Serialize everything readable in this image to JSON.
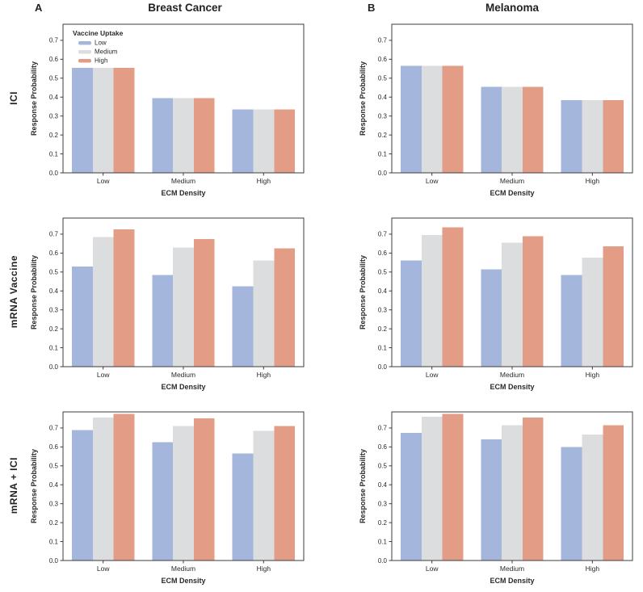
{
  "figure": {
    "panel_a": {
      "label": "A",
      "title": "Breast Cancer"
    },
    "panel_b": {
      "label": "B",
      "title": "Melanoma"
    },
    "row_labels": [
      "ICI",
      "mRNA Vaccine",
      "mRNA + ICI"
    ]
  },
  "legend": {
    "title": "Vaccine Uptake",
    "entries": [
      "Low",
      "Medium",
      "High"
    ]
  },
  "colors": {
    "uptake_low": "#a4b6db",
    "uptake_medium": "#dcdddf",
    "uptake_high": "#e39c86",
    "axis": "#3c3c3c",
    "text": "#2a2a2a"
  },
  "chart_data": [
    {
      "type": "bar",
      "panel": "A",
      "cancer": "Breast Cancer",
      "treatment": "ICI",
      "categories": [
        "Low",
        "Medium",
        "High"
      ],
      "series": [
        {
          "name": "Low",
          "color_key": "uptake_low",
          "values": [
            0.555,
            0.395,
            0.335
          ]
        },
        {
          "name": "Medium",
          "color_key": "uptake_medium",
          "values": [
            0.555,
            0.395,
            0.335
          ]
        },
        {
          "name": "High",
          "color_key": "uptake_high",
          "values": [
            0.555,
            0.395,
            0.335
          ]
        }
      ],
      "xlabel": "ECM Density",
      "ylabel": "Response Probability",
      "ylim": [
        0,
        0.785
      ],
      "yticks": [
        0.0,
        0.1,
        0.2,
        0.3,
        0.4,
        0.5,
        0.6,
        0.7
      ],
      "show_legend": true
    },
    {
      "type": "bar",
      "panel": "B",
      "cancer": "Melanoma",
      "treatment": "ICI",
      "categories": [
        "Low",
        "Medium",
        "High"
      ],
      "series": [
        {
          "name": "Low",
          "color_key": "uptake_low",
          "values": [
            0.565,
            0.455,
            0.385
          ]
        },
        {
          "name": "Medium",
          "color_key": "uptake_medium",
          "values": [
            0.565,
            0.455,
            0.385
          ]
        },
        {
          "name": "High",
          "color_key": "uptake_high",
          "values": [
            0.565,
            0.455,
            0.385
          ]
        }
      ],
      "xlabel": "ECM Density",
      "ylabel": "Response Probability",
      "ylim": [
        0,
        0.785
      ],
      "yticks": [
        0.0,
        0.1,
        0.2,
        0.3,
        0.4,
        0.5,
        0.6,
        0.7
      ],
      "show_legend": false
    },
    {
      "type": "bar",
      "panel": "A",
      "cancer": "Breast Cancer",
      "treatment": "mRNA Vaccine",
      "categories": [
        "Low",
        "Medium",
        "High"
      ],
      "series": [
        {
          "name": "Low",
          "color_key": "uptake_low",
          "values": [
            0.53,
            0.485,
            0.425
          ]
        },
        {
          "name": "Medium",
          "color_key": "uptake_medium",
          "values": [
            0.685,
            0.63,
            0.56
          ]
        },
        {
          "name": "High",
          "color_key": "uptake_high",
          "values": [
            0.725,
            0.675,
            0.625
          ]
        }
      ],
      "xlabel": "ECM Density",
      "ylabel": "Response Probability",
      "ylim": [
        0,
        0.785
      ],
      "yticks": [
        0.0,
        0.1,
        0.2,
        0.3,
        0.4,
        0.5,
        0.6,
        0.7
      ],
      "show_legend": false
    },
    {
      "type": "bar",
      "panel": "B",
      "cancer": "Melanoma",
      "treatment": "mRNA Vaccine",
      "categories": [
        "Low",
        "Medium",
        "High"
      ],
      "series": [
        {
          "name": "Low",
          "color_key": "uptake_low",
          "values": [
            0.56,
            0.515,
            0.485
          ]
        },
        {
          "name": "Medium",
          "color_key": "uptake_medium",
          "values": [
            0.695,
            0.655,
            0.575
          ]
        },
        {
          "name": "High",
          "color_key": "uptake_high",
          "values": [
            0.735,
            0.69,
            0.635
          ]
        }
      ],
      "xlabel": "ECM Density",
      "ylabel": "Response Probability",
      "ylim": [
        0,
        0.785
      ],
      "yticks": [
        0.0,
        0.1,
        0.2,
        0.3,
        0.4,
        0.5,
        0.6,
        0.7
      ],
      "show_legend": false
    },
    {
      "type": "bar",
      "panel": "A",
      "cancer": "Breast Cancer",
      "treatment": "mRNA + ICI",
      "categories": [
        "Low",
        "Medium",
        "High"
      ],
      "series": [
        {
          "name": "Low",
          "color_key": "uptake_low",
          "values": [
            0.69,
            0.625,
            0.565
          ]
        },
        {
          "name": "Medium",
          "color_key": "uptake_medium",
          "values": [
            0.755,
            0.71,
            0.685
          ]
        },
        {
          "name": "High",
          "color_key": "uptake_high",
          "values": [
            0.775,
            0.75,
            0.71
          ]
        }
      ],
      "xlabel": "ECM Density",
      "ylabel": "Response Probability",
      "ylim": [
        0,
        0.785
      ],
      "yticks": [
        0.0,
        0.1,
        0.2,
        0.3,
        0.4,
        0.5,
        0.6,
        0.7
      ],
      "show_legend": false
    },
    {
      "type": "bar",
      "panel": "B",
      "cancer": "Melanoma",
      "treatment": "mRNA + ICI",
      "categories": [
        "Low",
        "Medium",
        "High"
      ],
      "series": [
        {
          "name": "Low",
          "color_key": "uptake_low",
          "values": [
            0.675,
            0.64,
            0.6
          ]
        },
        {
          "name": "Medium",
          "color_key": "uptake_medium",
          "values": [
            0.76,
            0.715,
            0.665
          ]
        },
        {
          "name": "High",
          "color_key": "uptake_high",
          "values": [
            0.775,
            0.755,
            0.715
          ]
        }
      ],
      "xlabel": "ECM Density",
      "ylabel": "Response Probability",
      "ylim": [
        0,
        0.785
      ],
      "yticks": [
        0.0,
        0.1,
        0.2,
        0.3,
        0.4,
        0.5,
        0.6,
        0.7
      ],
      "show_legend": false
    }
  ]
}
